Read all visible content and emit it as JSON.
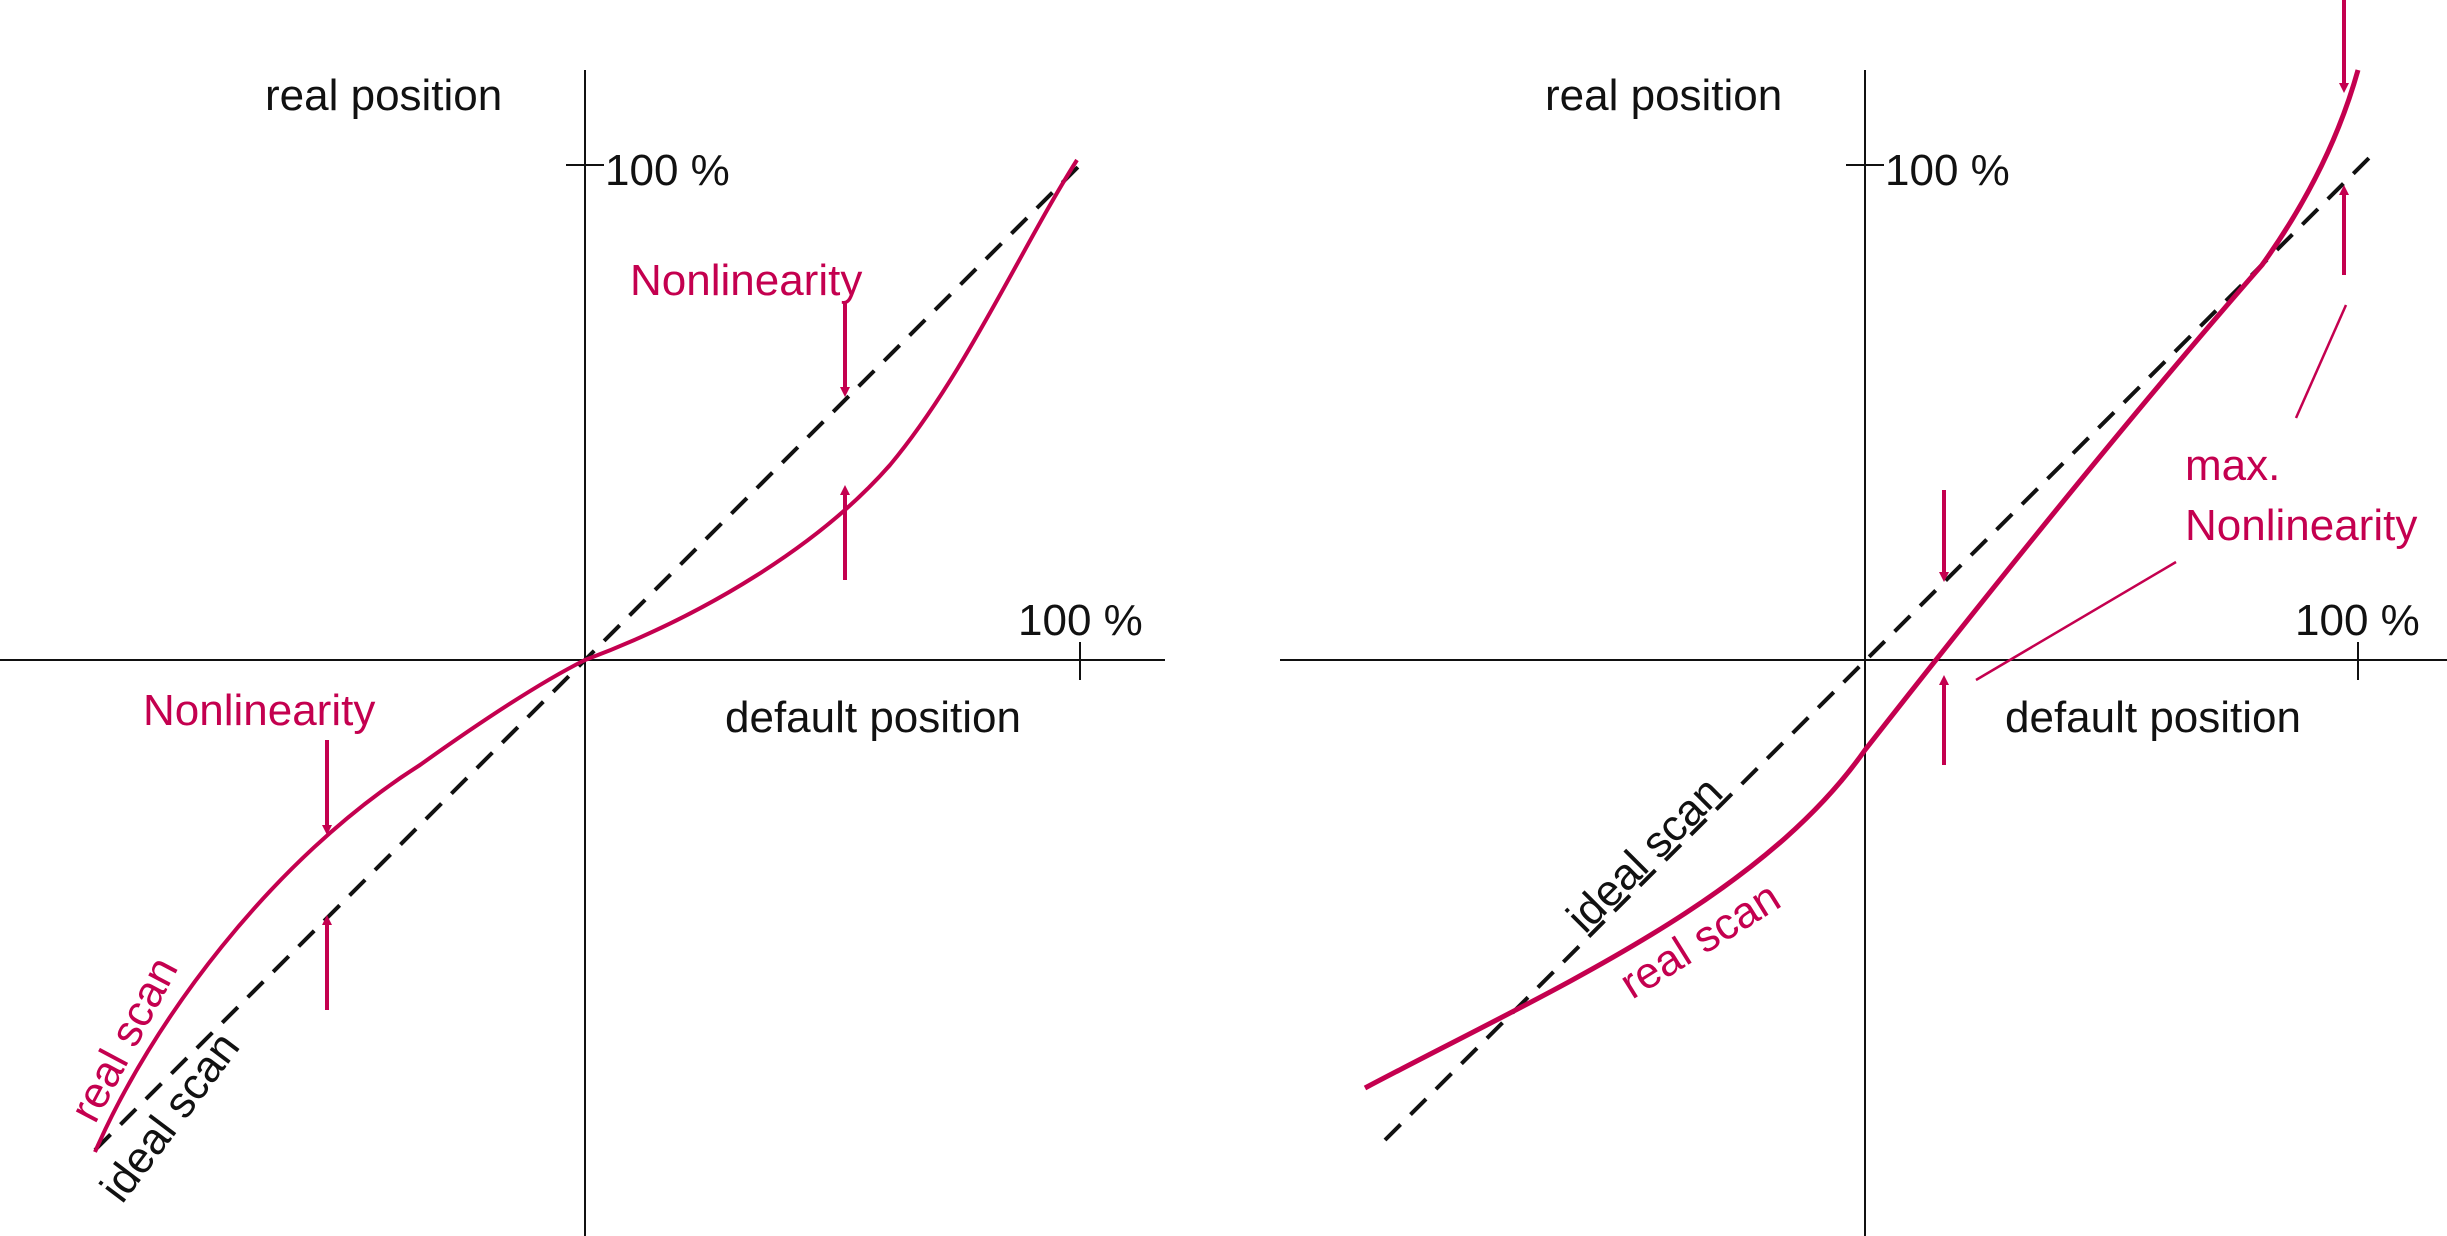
{
  "colors": {
    "axis": "#111111",
    "ideal": "#111111",
    "real": "#c4004f"
  },
  "left": {
    "y_axis_label": "real position",
    "x_axis_label": "default position",
    "y_tick_label": "100 %",
    "x_tick_label": "100 %",
    "annotation_upper": "Nonlinearity",
    "annotation_lower": "Nonlinearity",
    "real_curve_label": "real scan",
    "ideal_line_label": "ideal scan"
  },
  "right": {
    "y_axis_label": "real position",
    "x_axis_label": "default position",
    "y_tick_label": "100 %",
    "x_tick_label": "100 %",
    "annotation_line1": "max.",
    "annotation_line2": "Nonlinearity",
    "ideal_line_label": "ideal scan",
    "real_curve_label": "real scan"
  }
}
